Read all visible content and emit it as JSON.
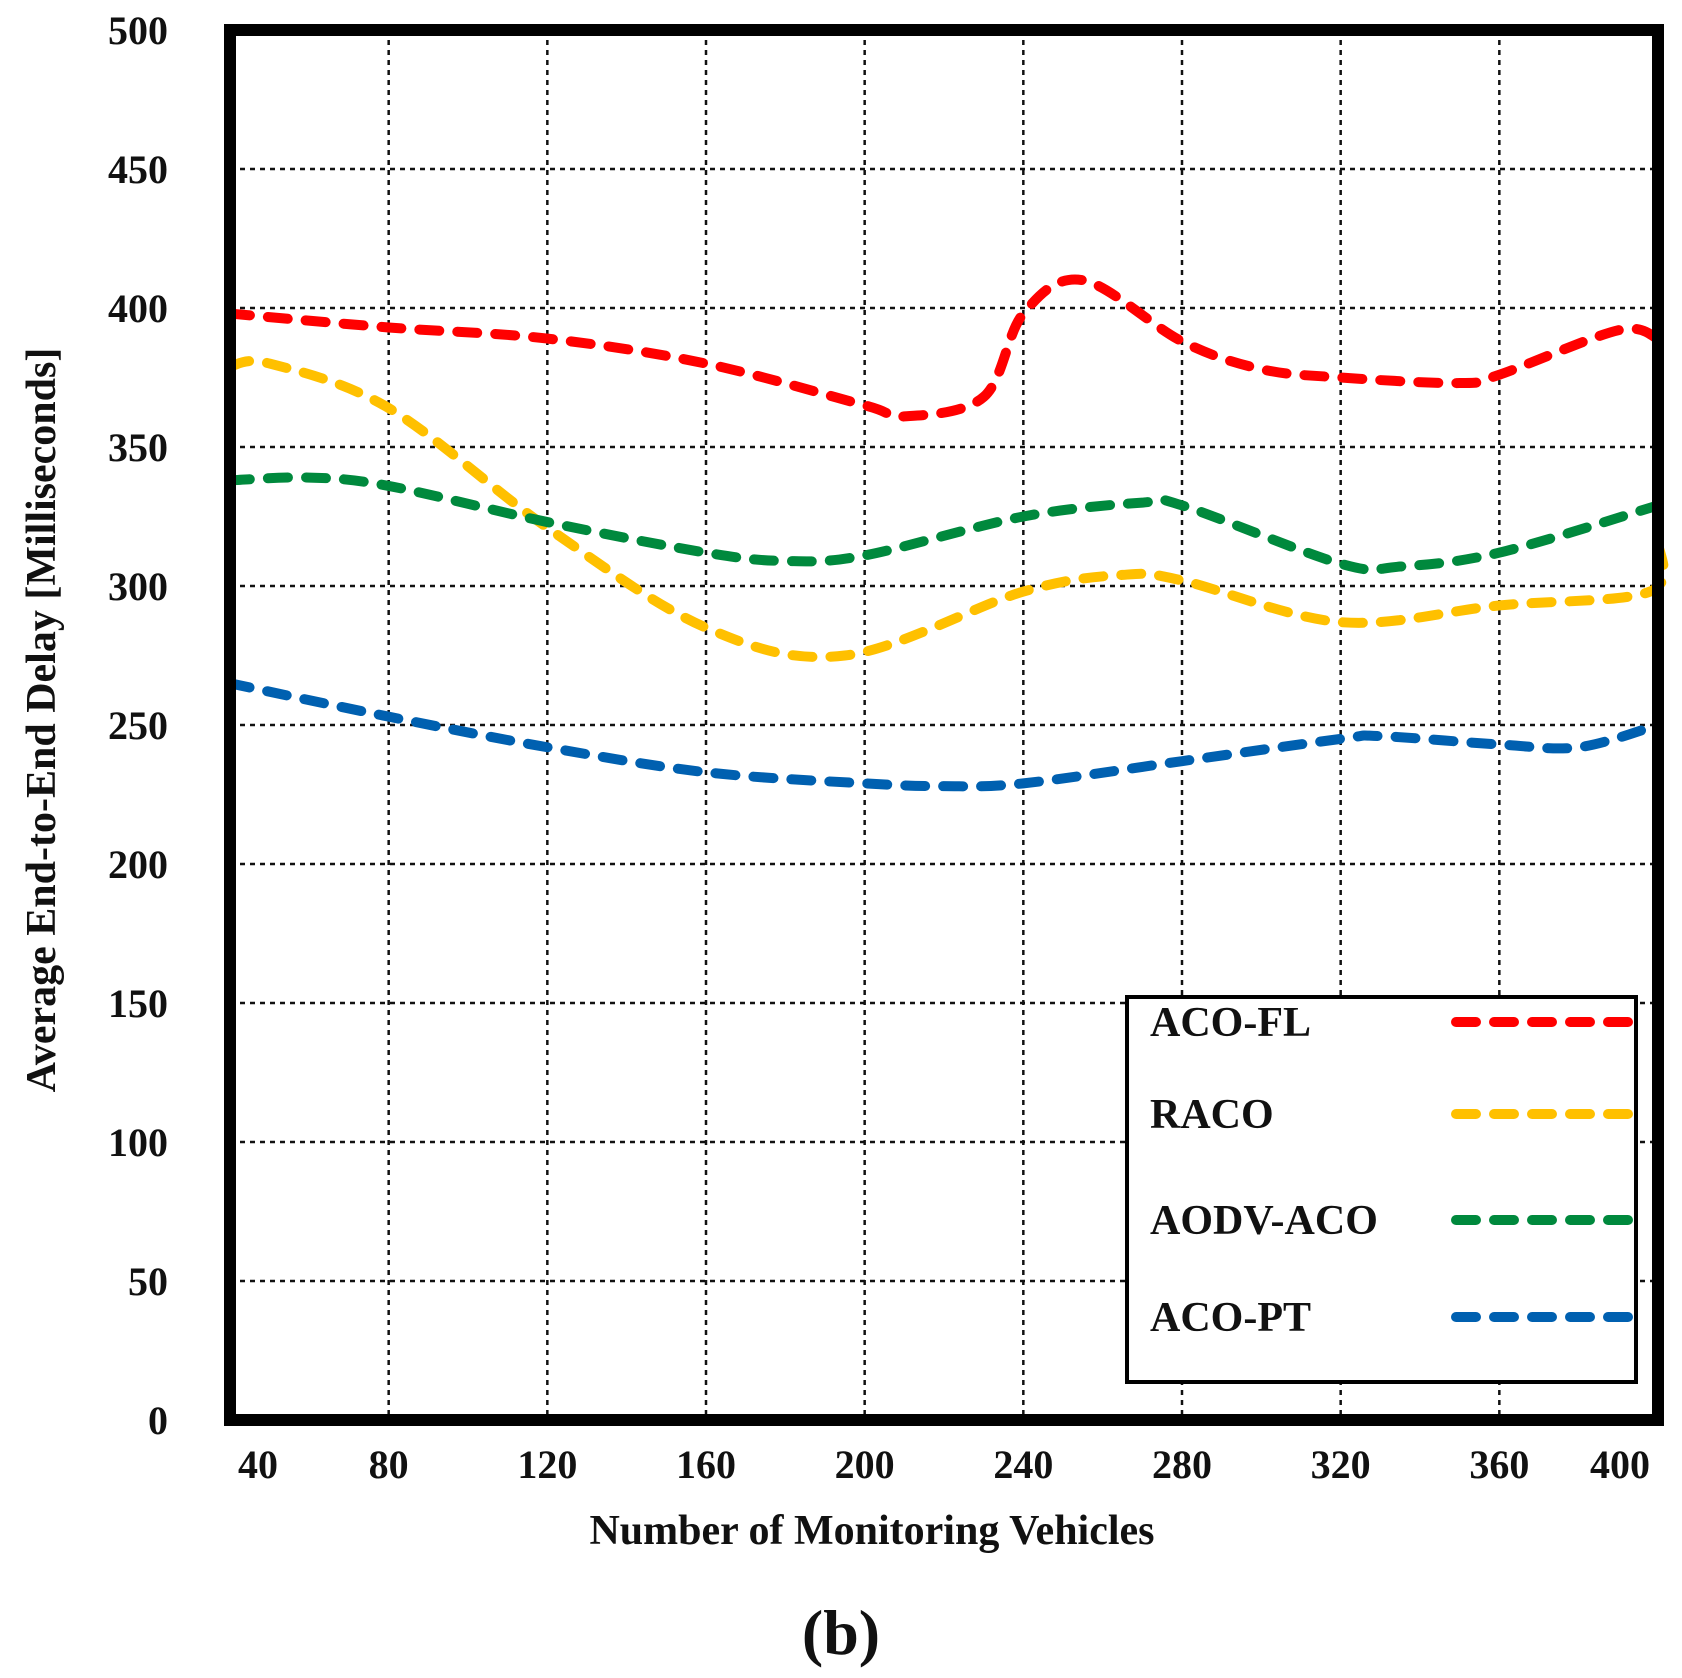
{
  "chart_data": {
    "type": "line",
    "title": "",
    "xlabel": "Number of Monitoring Vehicles",
    "ylabel": "Average End-to-End Delay [Milliseconds]",
    "caption": "(b)",
    "xlim": [
      40,
      400
    ],
    "ylim": [
      0,
      500
    ],
    "xticks": [
      40,
      80,
      120,
      160,
      200,
      240,
      280,
      320,
      360,
      400
    ],
    "yticks": [
      0,
      50,
      100,
      150,
      200,
      250,
      300,
      350,
      400,
      450,
      500
    ],
    "grid": true,
    "legend_position": "bottom-right",
    "series": [
      {
        "name": "ACO-FL",
        "color": "#ff0000",
        "x": [
          40,
          80,
          120,
          160,
          200,
          210,
          230,
          240,
          255,
          280,
          300,
          320,
          350,
          360,
          390,
          400
        ],
        "y": [
          398,
          393,
          389,
          380,
          365,
          361,
          368,
          398,
          410,
          388,
          378,
          375,
          373,
          376,
          392,
          389
        ]
      },
      {
        "name": "RACO",
        "color": "#ffc000",
        "x": [
          40,
          50,
          80,
          120,
          160,
          195,
          240,
          265,
          280,
          320,
          360,
          398,
          400
        ],
        "y": [
          379,
          380,
          364,
          321,
          285,
          275,
          298,
          304,
          302,
          287,
          293,
          298,
          316
        ]
      },
      {
        "name": "AODV-ACO",
        "color": "#00893d",
        "x": [
          40,
          60,
          80,
          120,
          160,
          180,
          200,
          240,
          270,
          280,
          320,
          335,
          360,
          400
        ],
        "y": [
          338,
          339,
          336,
          323,
          312,
          309,
          311,
          325,
          330,
          329,
          308,
          307,
          312,
          329
        ]
      },
      {
        "name": "ACO-PT",
        "color": "#0060b0",
        "x": [
          40,
          80,
          120,
          160,
          200,
          220,
          240,
          280,
          320,
          330,
          360,
          380,
          400
        ],
        "y": [
          265,
          253,
          242,
          233,
          229,
          228,
          229,
          237,
          245,
          246,
          243,
          242,
          250
        ]
      }
    ]
  }
}
